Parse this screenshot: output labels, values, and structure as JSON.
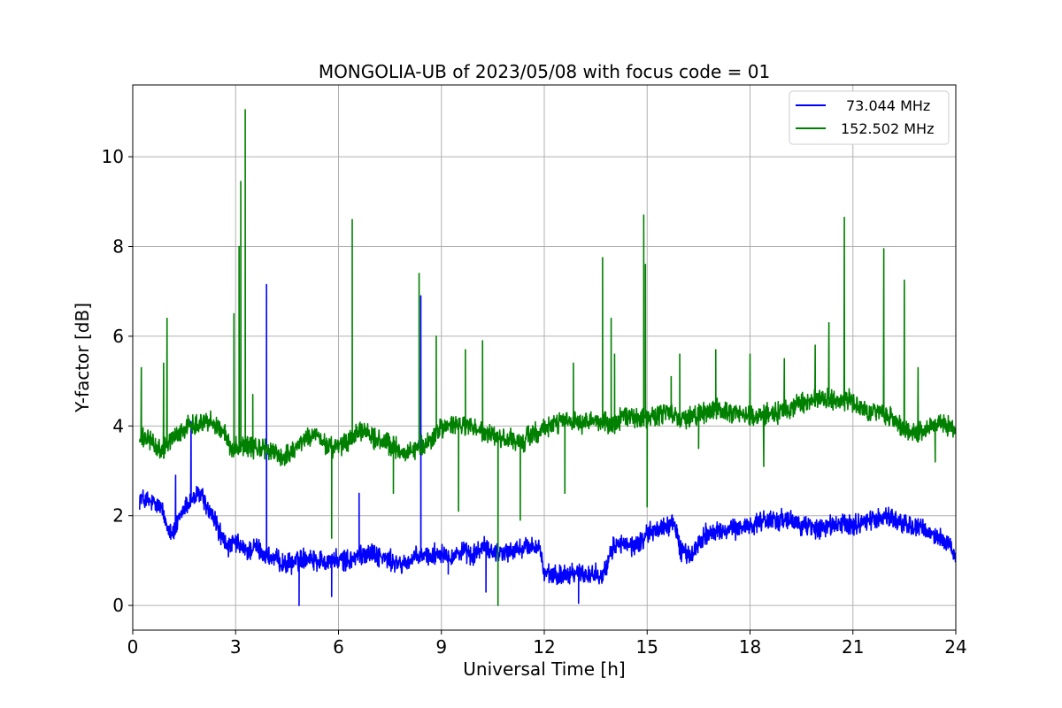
{
  "chart_data": {
    "type": "line",
    "title": "MONGOLIA-UB of 2023/05/08 with focus code = 01",
    "xlabel": "Universal Time [h]",
    "ylabel": "Y-factor [dB]",
    "xlim": [
      0,
      24
    ],
    "ylim": [
      -0.55,
      11.6
    ],
    "xticks": [
      0,
      3,
      6,
      9,
      12,
      15,
      18,
      21,
      24
    ],
    "xtick_labels": [
      "0",
      "3",
      "6",
      "9",
      "12",
      "15",
      "18",
      "21",
      "24"
    ],
    "yticks": [
      0,
      2,
      4,
      6,
      8,
      10
    ],
    "ytick_labels": [
      "0",
      "2",
      "4",
      "6",
      "8",
      "10"
    ],
    "grid": true,
    "legend_position": "top-right",
    "series": [
      {
        "name": "73.044 MHz",
        "color": "#0000ff",
        "x": [
          0.2,
          0.5,
          0.8,
          1.0,
          1.2,
          1.5,
          1.8,
          2.0,
          2.2,
          2.4,
          2.6,
          2.8,
          3.0,
          3.3,
          3.6,
          3.9,
          4.2,
          4.5,
          4.8,
          5.1,
          5.4,
          5.7,
          6.0,
          6.3,
          6.6,
          6.9,
          7.2,
          7.5,
          7.8,
          8.1,
          8.4,
          8.7,
          9.0,
          9.3,
          9.6,
          9.9,
          10.2,
          10.5,
          10.8,
          11.1,
          11.4,
          11.7,
          11.85,
          12.0,
          12.3,
          12.6,
          12.9,
          13.2,
          13.5,
          13.8,
          14.0,
          14.2,
          14.5,
          14.8,
          15.0,
          15.3,
          15.6,
          15.8,
          16.0,
          16.3,
          16.5,
          16.7,
          17.0,
          17.3,
          17.6,
          18.0,
          18.5,
          19.0,
          19.5,
          20.0,
          20.5,
          21.0,
          21.5,
          22.0,
          22.5,
          23.0,
          23.5,
          23.8,
          24.0
        ],
        "values": [
          2.4,
          2.3,
          2.2,
          1.8,
          1.6,
          2.2,
          2.4,
          2.5,
          2.1,
          1.9,
          1.5,
          1.3,
          1.4,
          1.2,
          1.3,
          1.1,
          1.0,
          0.9,
          1.0,
          1.1,
          1.0,
          1.0,
          1.0,
          1.0,
          1.1,
          1.2,
          1.1,
          1.0,
          0.9,
          1.0,
          1.1,
          1.1,
          1.2,
          1.1,
          1.2,
          1.1,
          1.3,
          1.2,
          1.2,
          1.2,
          1.3,
          1.3,
          1.35,
          0.7,
          0.65,
          0.7,
          0.75,
          0.7,
          0.7,
          0.75,
          1.3,
          1.4,
          1.3,
          1.4,
          1.6,
          1.7,
          1.8,
          1.8,
          1.2,
          1.1,
          1.4,
          1.6,
          1.6,
          1.7,
          1.7,
          1.8,
          1.9,
          1.9,
          1.8,
          1.7,
          1.8,
          1.8,
          1.9,
          2.0,
          1.8,
          1.7,
          1.5,
          1.4,
          1.0
        ],
        "spikes": [
          [
            1.25,
            2.9
          ],
          [
            1.7,
            4.1
          ],
          [
            3.9,
            7.15
          ],
          [
            4.85,
            0.0
          ],
          [
            6.6,
            2.5
          ],
          [
            8.4,
            6.9
          ],
          [
            9.2,
            0.7
          ],
          [
            5.8,
            0.2
          ],
          [
            10.3,
            0.3
          ],
          [
            13.0,
            0.05
          ]
        ]
      },
      {
        "name": "152.502 MHz",
        "color": "#008000",
        "x": [
          0.2,
          0.5,
          0.8,
          1.0,
          1.3,
          1.6,
          2.0,
          2.3,
          2.6,
          2.9,
          3.2,
          3.5,
          3.8,
          4.1,
          4.4,
          4.7,
          5.0,
          5.3,
          5.6,
          5.9,
          6.2,
          6.5,
          6.8,
          7.1,
          7.4,
          7.7,
          8.0,
          8.3,
          8.6,
          8.9,
          9.2,
          9.5,
          9.8,
          10.1,
          10.4,
          10.7,
          11.0,
          11.3,
          11.6,
          11.9,
          12.2,
          12.5,
          12.8,
          13.1,
          13.4,
          13.7,
          14.0,
          14.3,
          14.6,
          14.9,
          15.2,
          15.5,
          15.8,
          16.1,
          16.4,
          16.7,
          17.0,
          17.3,
          17.6,
          17.9,
          18.2,
          18.5,
          18.8,
          19.1,
          19.4,
          19.7,
          20.0,
          20.3,
          20.6,
          20.9,
          21.2,
          21.5,
          21.8,
          22.1,
          22.4,
          22.7,
          23.0,
          23.3,
          23.6,
          24.0
        ],
        "values": [
          3.7,
          3.7,
          3.4,
          3.6,
          3.8,
          4.0,
          4.1,
          4.1,
          3.9,
          3.5,
          3.6,
          3.5,
          3.5,
          3.4,
          3.3,
          3.5,
          3.7,
          3.8,
          3.6,
          3.5,
          3.6,
          3.8,
          3.9,
          3.7,
          3.6,
          3.5,
          3.4,
          3.5,
          3.6,
          3.9,
          4.0,
          4.0,
          4.0,
          3.9,
          3.8,
          3.7,
          3.7,
          3.6,
          3.8,
          3.9,
          4.0,
          4.1,
          4.1,
          4.0,
          4.1,
          4.1,
          4.0,
          4.2,
          4.2,
          4.2,
          4.2,
          4.3,
          4.2,
          4.2,
          4.2,
          4.3,
          4.4,
          4.3,
          4.3,
          4.2,
          4.2,
          4.3,
          4.3,
          4.4,
          4.5,
          4.5,
          4.6,
          4.6,
          4.5,
          4.6,
          4.4,
          4.3,
          4.3,
          4.2,
          4.0,
          3.8,
          3.9,
          4.0,
          4.1,
          3.9
        ],
        "spikes": [
          [
            0.25,
            5.3
          ],
          [
            0.9,
            5.4
          ],
          [
            1.0,
            6.4
          ],
          [
            2.95,
            6.5
          ],
          [
            3.1,
            8.0
          ],
          [
            3.15,
            9.45
          ],
          [
            3.28,
            11.05
          ],
          [
            3.5,
            4.7
          ],
          [
            5.8,
            1.5
          ],
          [
            6.4,
            8.6
          ],
          [
            7.6,
            2.5
          ],
          [
            8.35,
            7.4
          ],
          [
            8.85,
            6.0
          ],
          [
            9.5,
            2.1
          ],
          [
            9.7,
            5.7
          ],
          [
            10.2,
            5.9
          ],
          [
            10.65,
            0.0
          ],
          [
            11.3,
            1.9
          ],
          [
            12.6,
            2.5
          ],
          [
            12.85,
            5.4
          ],
          [
            13.7,
            7.75
          ],
          [
            13.95,
            6.4
          ],
          [
            14.05,
            5.6
          ],
          [
            14.9,
            8.7
          ],
          [
            14.95,
            7.6
          ],
          [
            15.0,
            2.2
          ],
          [
            15.7,
            5.1
          ],
          [
            15.95,
            5.6
          ],
          [
            16.5,
            3.5
          ],
          [
            17.0,
            5.7
          ],
          [
            18.0,
            5.6
          ],
          [
            18.4,
            3.1
          ],
          [
            19.0,
            5.5
          ],
          [
            19.9,
            5.8
          ],
          [
            20.3,
            6.3
          ],
          [
            20.75,
            8.65
          ],
          [
            21.9,
            7.95
          ],
          [
            22.5,
            7.25
          ],
          [
            22.9,
            5.3
          ],
          [
            23.4,
            3.2
          ]
        ]
      }
    ]
  }
}
